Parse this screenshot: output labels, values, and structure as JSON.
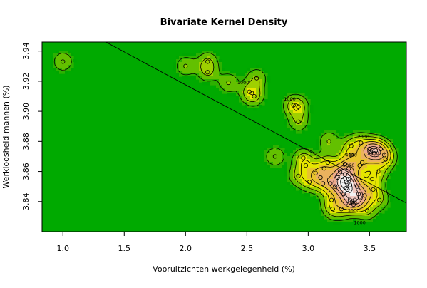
{
  "chart_data": {
    "type": "heatmap",
    "title": "Bivariate Kernel Density",
    "xlabel": "Vooruitzichten werkgelegenheid (%)",
    "ylabel": "Werkloosheid mannen (%)",
    "xlim": [
      0.83,
      3.8
    ],
    "ylim": [
      3.82,
      3.946
    ],
    "x_ticks": [
      1.0,
      1.5,
      2.0,
      2.5,
      3.0,
      3.5
    ],
    "x_tick_labels": [
      "1.0",
      "1.5",
      "2.0",
      "2.5",
      "3.0",
      "3.5"
    ],
    "y_ticks": [
      3.84,
      3.86,
      3.88,
      3.9,
      3.92,
      3.94
    ],
    "y_tick_labels": [
      "3.84",
      "3.86",
      "3.88",
      "3.90",
      "3.92",
      "3.94"
    ],
    "contour_labels": [
      {
        "text": "1000",
        "x": 2.47,
        "y": 3.919
      },
      {
        "text": "1000",
        "x": 2.85,
        "y": 3.908
      },
      {
        "text": "2000",
        "x": 3.45,
        "y": 3.883
      },
      {
        "text": "4000",
        "x": 3.35,
        "y": 3.871
      },
      {
        "text": "3000",
        "x": 3.53,
        "y": 3.872
      },
      {
        "text": "5000",
        "x": 3.33,
        "y": 3.864
      },
      {
        "text": "3000",
        "x": 3.35,
        "y": 3.839
      },
      {
        "text": "3000",
        "x": 3.37,
        "y": 3.834
      },
      {
        "text": "1000",
        "x": 3.42,
        "y": 3.826
      }
    ],
    "regression_line": [
      {
        "x": 1.35,
        "y": 3.946
      },
      {
        "x": 3.8,
        "y": 3.839
      }
    ],
    "points": [
      [
        1.0,
        3.933
      ],
      [
        2.0,
        3.93
      ],
      [
        2.18,
        3.933
      ],
      [
        2.18,
        3.926
      ],
      [
        2.35,
        3.919
      ],
      [
        2.52,
        3.913
      ],
      [
        2.56,
        3.91
      ],
      [
        2.58,
        3.922
      ],
      [
        2.88,
        3.904
      ],
      [
        2.92,
        3.903
      ],
      [
        2.92,
        3.893
      ],
      [
        2.73,
        3.87
      ],
      [
        2.92,
        3.857
      ],
      [
        2.96,
        3.869
      ],
      [
        2.98,
        3.864
      ],
      [
        3.01,
        3.853
      ],
      [
        3.06,
        3.859
      ],
      [
        3.1,
        3.856
      ],
      [
        3.12,
        3.852
      ],
      [
        3.13,
        3.862
      ],
      [
        3.16,
        3.866
      ],
      [
        3.17,
        3.88
      ],
      [
        3.18,
        3.852
      ],
      [
        3.19,
        3.841
      ],
      [
        3.2,
        3.835
      ],
      [
        3.22,
        3.85
      ],
      [
        3.24,
        3.856
      ],
      [
        3.26,
        3.86
      ],
      [
        3.27,
        3.835
      ],
      [
        3.28,
        3.854
      ],
      [
        3.29,
        3.845
      ],
      [
        3.3,
        3.865
      ],
      [
        3.3,
        3.858
      ],
      [
        3.31,
        3.853
      ],
      [
        3.31,
        3.849
      ],
      [
        3.32,
        3.852
      ],
      [
        3.32,
        3.848
      ],
      [
        3.33,
        3.862
      ],
      [
        3.33,
        3.855
      ],
      [
        3.34,
        3.851
      ],
      [
        3.34,
        3.841
      ],
      [
        3.35,
        3.877
      ],
      [
        3.35,
        3.871
      ],
      [
        3.36,
        3.84
      ],
      [
        3.37,
        3.838
      ],
      [
        3.38,
        3.841
      ],
      [
        3.4,
        3.85
      ],
      [
        3.41,
        3.845
      ],
      [
        3.42,
        3.864
      ],
      [
        3.42,
        3.843
      ],
      [
        3.43,
        3.879
      ],
      [
        3.44,
        3.866
      ],
      [
        3.46,
        3.844
      ],
      [
        3.48,
        3.834
      ],
      [
        3.5,
        3.875
      ],
      [
        3.51,
        3.873
      ],
      [
        3.52,
        3.874
      ],
      [
        3.52,
        3.855
      ],
      [
        3.53,
        3.848
      ],
      [
        3.54,
        3.872
      ],
      [
        3.55,
        3.874
      ],
      [
        3.57,
        3.86
      ],
      [
        3.58,
        3.841
      ],
      [
        3.59,
        3.875
      ],
      [
        3.62,
        3.871
      ],
      [
        3.63,
        3.868
      ]
    ]
  }
}
